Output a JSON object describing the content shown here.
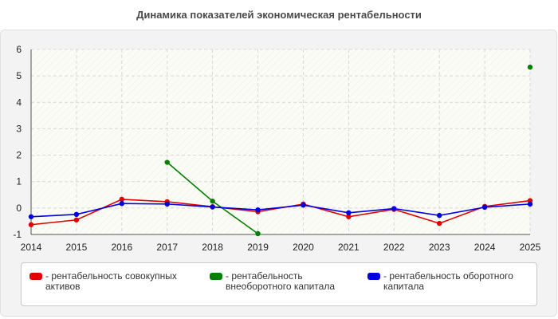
{
  "title": "Динамика показателей экономическая рентабельности",
  "chart_data": {
    "type": "line",
    "x": [
      "2014",
      "2015",
      "2016",
      "2017",
      "2018",
      "2019",
      "2020",
      "2021",
      "2022",
      "2023",
      "2024",
      "2025"
    ],
    "ylim": [
      -1,
      6
    ],
    "yticks": [
      -1,
      0,
      1,
      2,
      3,
      4,
      5,
      6
    ],
    "grid": true,
    "legend_position": "bottom",
    "series": [
      {
        "name": "- рентабельность совокупных активов",
        "color": "#e00000",
        "values": [
          -0.63,
          -0.45,
          0.33,
          0.24,
          0.05,
          -0.14,
          0.15,
          -0.33,
          -0.05,
          -0.58,
          0.06,
          0.28
        ]
      },
      {
        "name": "- рентабельность внеоборотного капитала",
        "color": "#008000",
        "values": [
          null,
          null,
          null,
          1.73,
          0.26,
          -0.97,
          null,
          null,
          null,
          null,
          null,
          5.33
        ]
      },
      {
        "name": "- рентабельность оборотного капитала",
        "color": "#0000e0",
        "values": [
          -0.33,
          -0.24,
          0.17,
          0.15,
          0.04,
          -0.07,
          0.11,
          -0.18,
          -0.02,
          -0.28,
          0.03,
          0.15
        ]
      }
    ]
  },
  "legend": {
    "items": [
      {
        "line1": "- рентабельность совокупных",
        "line2": "активов",
        "color": "#e00000"
      },
      {
        "line1": "- рентабельность",
        "line2": "внеоборотного капитала",
        "color": "#008000"
      },
      {
        "line1": "- рентабельность оборотного",
        "line2": "капитала",
        "color": "#0000e0"
      }
    ]
  }
}
